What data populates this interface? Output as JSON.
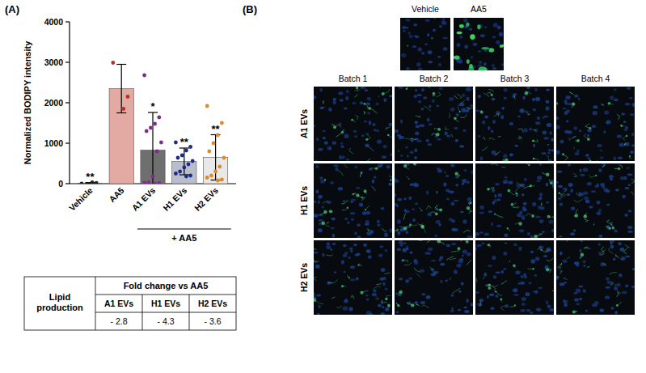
{
  "chart_data": {
    "type": "bar",
    "panel_label": "(A)",
    "y_label": "Normalized BODIPY intensity",
    "categories": [
      "Vehicle",
      "AA5",
      "A1 EVs",
      "H1 EVs",
      "H2 EVs"
    ],
    "values": [
      15,
      2350,
      830,
      550,
      650
    ],
    "errors": [
      12,
      600,
      930,
      330,
      560
    ],
    "points": [
      [
        0,
        15,
        30
      ],
      [
        2990,
        2150,
        1850
      ],
      [
        2680,
        1640,
        1480,
        1380,
        1300,
        1020,
        800,
        180,
        30,
        20,
        10,
        0
      ],
      [
        1020,
        910,
        820,
        700,
        640,
        560,
        480,
        400,
        300,
        250,
        200,
        180
      ],
      [
        1920,
        1500,
        1200,
        1000,
        800,
        640,
        420,
        300,
        200,
        150,
        100,
        80
      ]
    ],
    "colors": [
      "#d9d9d9",
      "#e3aaa3",
      "#6f6f6f",
      "#b9bdcc",
      "#e8e8e8"
    ],
    "significance": [
      "**",
      null,
      "*",
      "**",
      "**"
    ],
    "group_label": "+ AA5",
    "ylim": [
      0,
      4000
    ],
    "yticks": [
      0,
      1000,
      2000,
      3000,
      4000
    ],
    "grid": false
  },
  "table": {
    "row_header": "Lipid production",
    "header": "Fold change vs AA5",
    "columns": [
      "A1 EVs",
      "H1 EVs",
      "H2 EVs"
    ],
    "values": [
      "- 2.8",
      "- 4.3",
      "- 3.6"
    ]
  },
  "panel_b": {
    "panel_label": "(B)",
    "controls": [
      "Vehicle",
      "AA5"
    ],
    "columns": [
      "Batch 1",
      "Batch 2",
      "Batch 3",
      "Batch 4"
    ],
    "rows": [
      "A1 EVs",
      "H1 EVs",
      "H2 EVs"
    ]
  }
}
